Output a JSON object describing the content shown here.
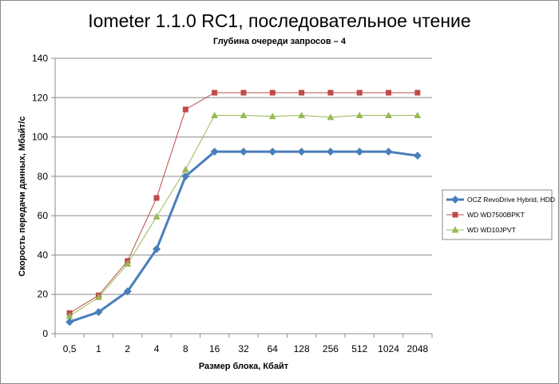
{
  "chart_data": {
    "type": "line",
    "title": "Iometer 1.1.0 RC1, последовательное чтение",
    "subtitle": "Глубина очереди запросов – 4",
    "xlabel": "Размер блока, Кбайт",
    "ylabel": "Скорость передачи данных, Мбайт/с",
    "categories": [
      "0,5",
      "1",
      "2",
      "4",
      "8",
      "16",
      "32",
      "64",
      "128",
      "256",
      "512",
      "1024",
      "2048"
    ],
    "ylim": [
      0,
      140
    ],
    "yticks": [
      0,
      20,
      40,
      60,
      80,
      100,
      120,
      140
    ],
    "grid": "horizontal",
    "legend_position": "right",
    "series": [
      {
        "name": "OCZ RevoDrive Hybrid, HDD",
        "color": "#4a7ebb",
        "marker": "diamond",
        "values": [
          6,
          11,
          21.5,
          43,
          80,
          92.5,
          92.5,
          92.5,
          92.5,
          92.5,
          92.5,
          92.5,
          90.5
        ]
      },
      {
        "name": "WD WD7500BPKT",
        "color": "#be4b48",
        "marker": "square",
        "values": [
          10.5,
          19.5,
          37,
          69,
          114,
          122.5,
          122.5,
          122.5,
          122.5,
          122.5,
          122.5,
          122.5,
          122.5
        ]
      },
      {
        "name": "WD WD10JPVT",
        "color": "#98b954",
        "marker": "triangle",
        "values": [
          9,
          18.5,
          35.5,
          59.5,
          83.5,
          111,
          111,
          110.5,
          111,
          110,
          111,
          111,
          111
        ]
      }
    ]
  }
}
